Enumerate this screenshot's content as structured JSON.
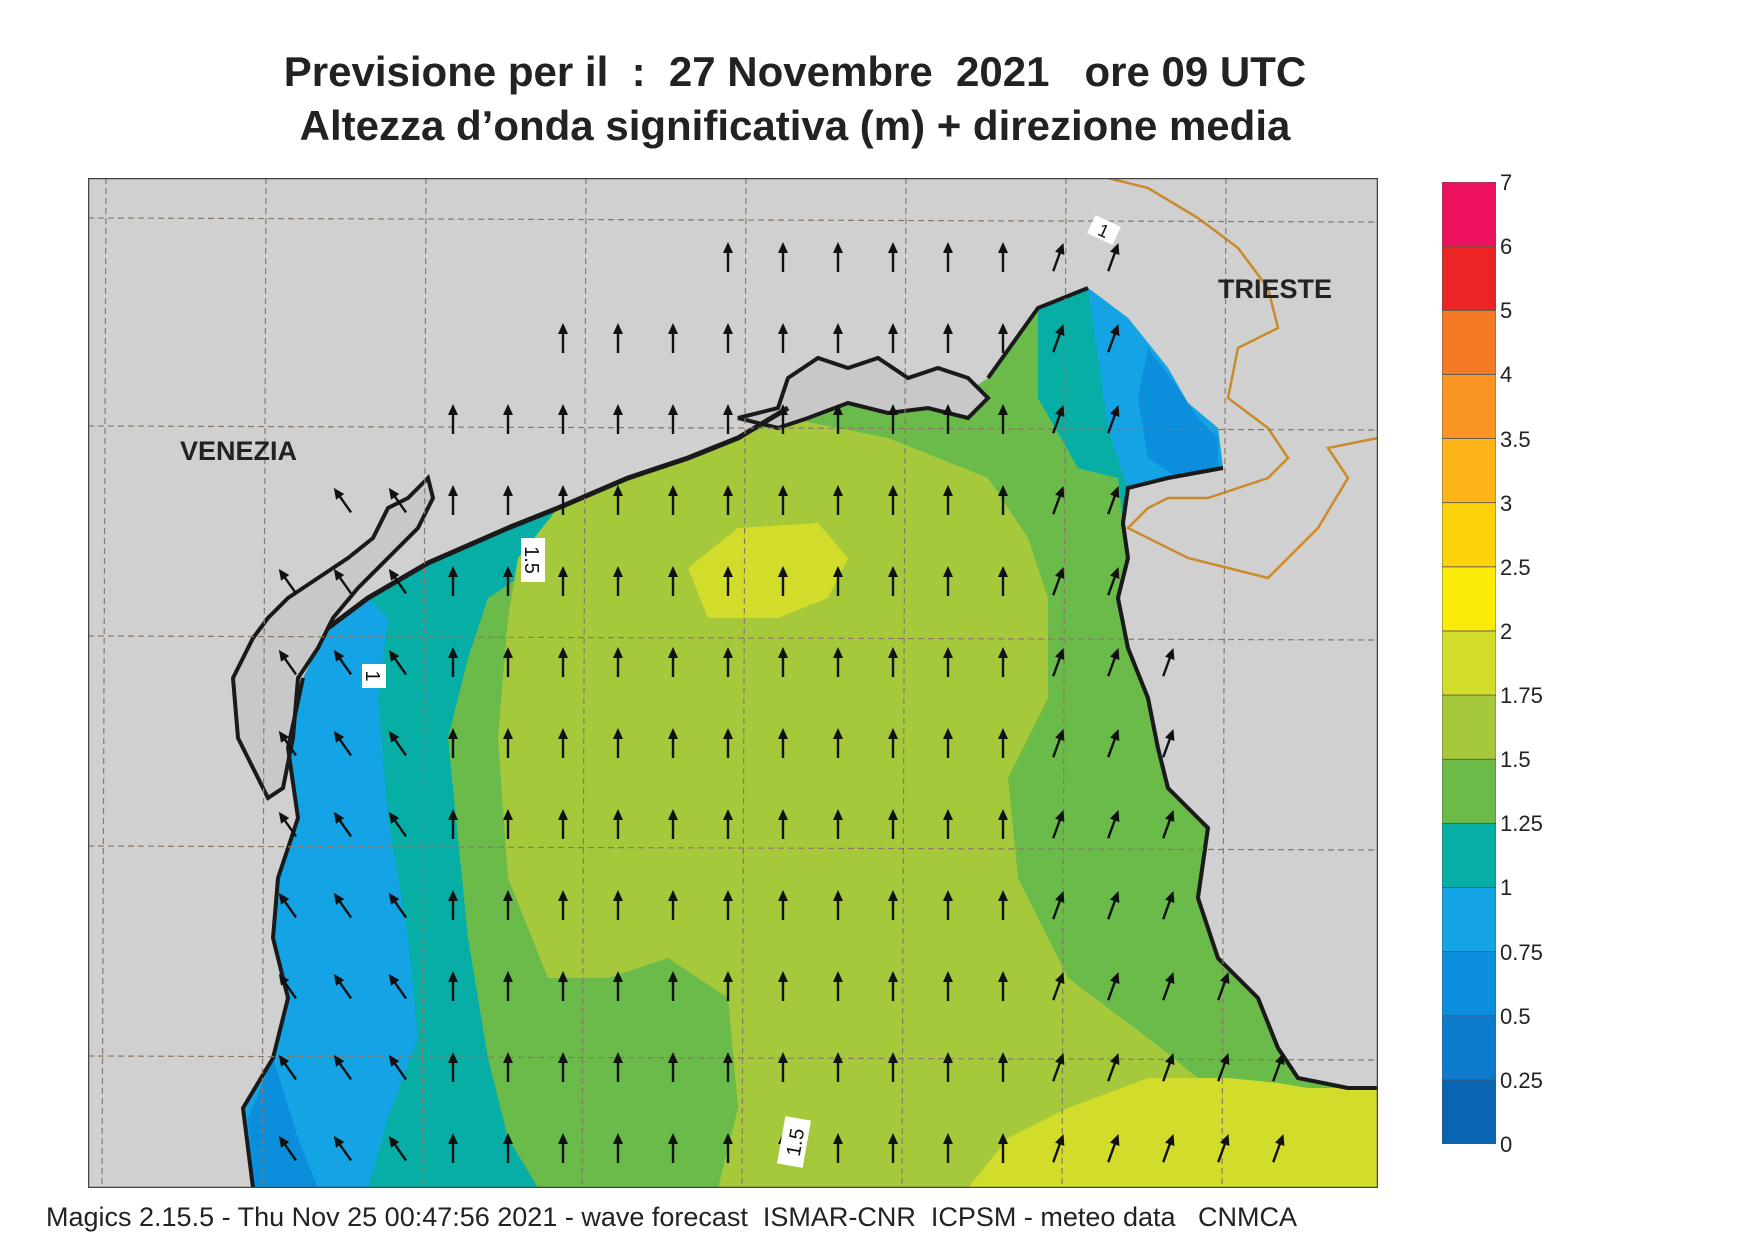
{
  "title": {
    "line1": "Previsione per il  :  27 Novembre  2021   ore 09 UTC",
    "line2": "Altezza d’onda significativa (m) + direzione media"
  },
  "map": {
    "labels": {
      "venezia": "VENEZIA",
      "trieste": "TRIESTE"
    },
    "contour_labels": [
      "1",
      "1.5",
      "1",
      "1.5"
    ],
    "colors": {
      "land": "#d0d0d0",
      "coast": "#1a1a1a",
      "border": "#c98a2a",
      "grid": "#8a7a6a"
    },
    "arrow_direction": "north"
  },
  "legend": {
    "levels": [
      "0",
      "0.25",
      "0.5",
      "0.75",
      "1",
      "1.25",
      "1.5",
      "1.75",
      "2",
      "2.5",
      "3",
      "3.5",
      "4",
      "5",
      "6",
      "7"
    ],
    "colors": [
      "#0a64b4",
      "#0d7acc",
      "#0b8fdc",
      "#14a4e6",
      "#07aea6",
      "#6abb4a",
      "#a5c93a",
      "#d2dc2a",
      "#faeb08",
      "#fcd20a",
      "#fcb419",
      "#f99425",
      "#f57a25",
      "#ec2424",
      "#ec115e"
    ]
  },
  "footer": "Magics 2.15.5 - Thu Nov 25 00:47:56 2021 - wave forecast  ISMAR-CNR  ICPSM - meteo data   CNMCA"
}
